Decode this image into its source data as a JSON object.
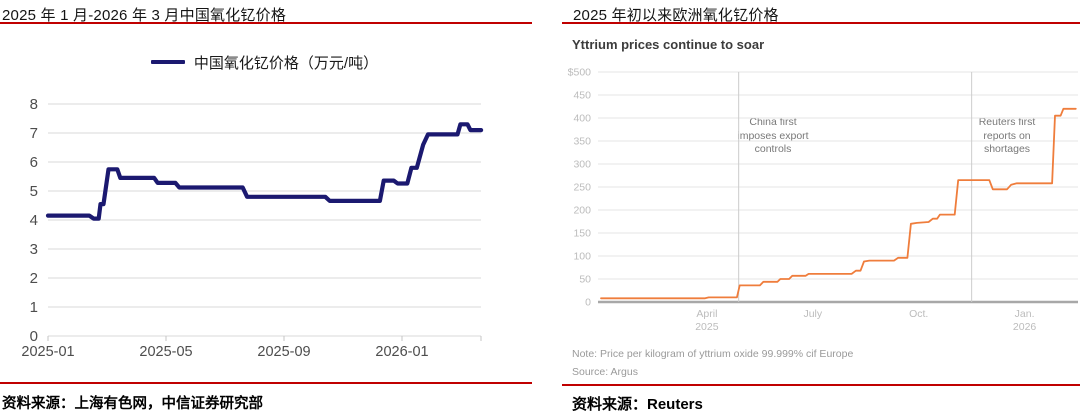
{
  "page": {
    "accent_red": "#c00000",
    "background": "#ffffff"
  },
  "left_panel": {
    "title": "2025 年 1 月-2026 年 3 月中国氧化钇价格",
    "legend_label": "中国氧化钇价格（万元/吨）",
    "source": "资料来源：上海有色网，中信证券研究部"
  },
  "right_panel": {
    "title": "2025 年初以来欧洲氧化钇价格",
    "subtitle": "Yttrium prices continue to soar",
    "note": "Note: Price per kilogram of yttrium oxide 99.999% cif Europe",
    "source_inner": "Source: Argus",
    "source": "资料来源：Reuters"
  },
  "chart_data": [
    {
      "type": "line",
      "title": "2025 年 1 月-2026 年 3 月中国氧化钇价格",
      "series_name": "中国氧化钇价格（万元/吨）",
      "ylabel": "万元/吨",
      "line_color": "#1b1970",
      "grid_color": "#d9d9d9",
      "tick_label_color": "#4d4d4d",
      "ylim": [
        0,
        8
      ],
      "yticks": [
        0,
        1,
        2,
        3,
        4,
        5,
        6,
        7,
        8
      ],
      "x_unit": "months since 2025-01",
      "xlim_months": [
        0,
        14.7
      ],
      "xticks": [
        {
          "m": 0,
          "label": "2025-01"
        },
        {
          "m": 4,
          "label": "2025-05"
        },
        {
          "m": 8,
          "label": "2025-09"
        },
        {
          "m": 12,
          "label": "2026-01"
        }
      ],
      "points": [
        [
          0,
          4.15
        ],
        [
          1.4,
          4.15
        ],
        [
          1.55,
          4.05
        ],
        [
          1.72,
          4.05
        ],
        [
          1.78,
          4.55
        ],
        [
          1.88,
          4.55
        ],
        [
          2.05,
          5.75
        ],
        [
          2.35,
          5.75
        ],
        [
          2.45,
          5.45
        ],
        [
          3.6,
          5.45
        ],
        [
          3.72,
          5.28
        ],
        [
          4.32,
          5.28
        ],
        [
          4.45,
          5.12
        ],
        [
          6.6,
          5.12
        ],
        [
          6.75,
          4.8
        ],
        [
          9.4,
          4.8
        ],
        [
          9.55,
          4.66
        ],
        [
          11.25,
          4.66
        ],
        [
          11.38,
          5.36
        ],
        [
          11.72,
          5.36
        ],
        [
          11.85,
          5.26
        ],
        [
          12.18,
          5.26
        ],
        [
          12.32,
          5.8
        ],
        [
          12.5,
          5.8
        ],
        [
          12.72,
          6.6
        ],
        [
          12.88,
          6.95
        ],
        [
          13.88,
          6.95
        ],
        [
          13.98,
          7.3
        ],
        [
          14.22,
          7.3
        ],
        [
          14.32,
          7.1
        ],
        [
          14.68,
          7.1
        ]
      ]
    },
    {
      "type": "line",
      "title": "2025 年初以来欧洲氧化钇价格",
      "subtitle": "Yttrium prices continue to soar",
      "line_color": "#ef7d3c",
      "grid_color": "#e5e5e5",
      "baseline_color": "#a8a8a8",
      "tick_label_color": "#bcbcbc",
      "ylim": [
        0,
        500
      ],
      "yticks": [
        {
          "v": 500,
          "label": "$500"
        },
        {
          "v": 450,
          "label": "450"
        },
        {
          "v": 400,
          "label": "400"
        },
        {
          "v": 350,
          "label": "350"
        },
        {
          "v": 300,
          "label": "300"
        },
        {
          "v": 250,
          "label": "250"
        },
        {
          "v": 200,
          "label": "200"
        },
        {
          "v": 150,
          "label": "150"
        },
        {
          "v": 100,
          "label": "100"
        },
        {
          "v": 50,
          "label": "50"
        },
        {
          "v": 0,
          "label": "0"
        }
      ],
      "x_unit": "months since 2025-01",
      "xlim_months": [
        -0.1,
        13.6
      ],
      "xticks": [
        {
          "m": 3,
          "label": "April\n2025"
        },
        {
          "m": 6,
          "label": "July"
        },
        {
          "m": 9,
          "label": "Oct."
        },
        {
          "m": 12,
          "label": "Jan.\n2026"
        }
      ],
      "events": [
        {
          "m": 3.9,
          "label": "China first\nimposes export\ncontrols"
        },
        {
          "m": 10.5,
          "label": "Reuters first\nreports on\nshortages"
        }
      ],
      "points": [
        [
          0,
          8
        ],
        [
          2.95,
          8
        ],
        [
          3.05,
          10
        ],
        [
          3.85,
          10
        ],
        [
          3.93,
          36
        ],
        [
          4.5,
          36
        ],
        [
          4.6,
          44
        ],
        [
          5.0,
          44
        ],
        [
          5.08,
          50
        ],
        [
          5.33,
          50
        ],
        [
          5.42,
          57
        ],
        [
          5.8,
          57
        ],
        [
          5.88,
          61
        ],
        [
          7.1,
          61
        ],
        [
          7.22,
          68
        ],
        [
          7.35,
          68
        ],
        [
          7.45,
          88
        ],
        [
          7.6,
          90
        ],
        [
          8.3,
          90
        ],
        [
          8.42,
          96
        ],
        [
          8.68,
          96
        ],
        [
          8.78,
          170
        ],
        [
          8.95,
          172
        ],
        [
          9.28,
          174
        ],
        [
          9.4,
          181
        ],
        [
          9.52,
          181
        ],
        [
          9.6,
          190
        ],
        [
          10.02,
          190
        ],
        [
          10.12,
          265
        ],
        [
          11.0,
          265
        ],
        [
          11.1,
          245
        ],
        [
          11.5,
          245
        ],
        [
          11.62,
          255
        ],
        [
          11.78,
          258
        ],
        [
          12.78,
          258
        ],
        [
          12.86,
          405
        ],
        [
          13.02,
          405
        ],
        [
          13.1,
          420
        ],
        [
          13.45,
          420
        ]
      ]
    }
  ]
}
